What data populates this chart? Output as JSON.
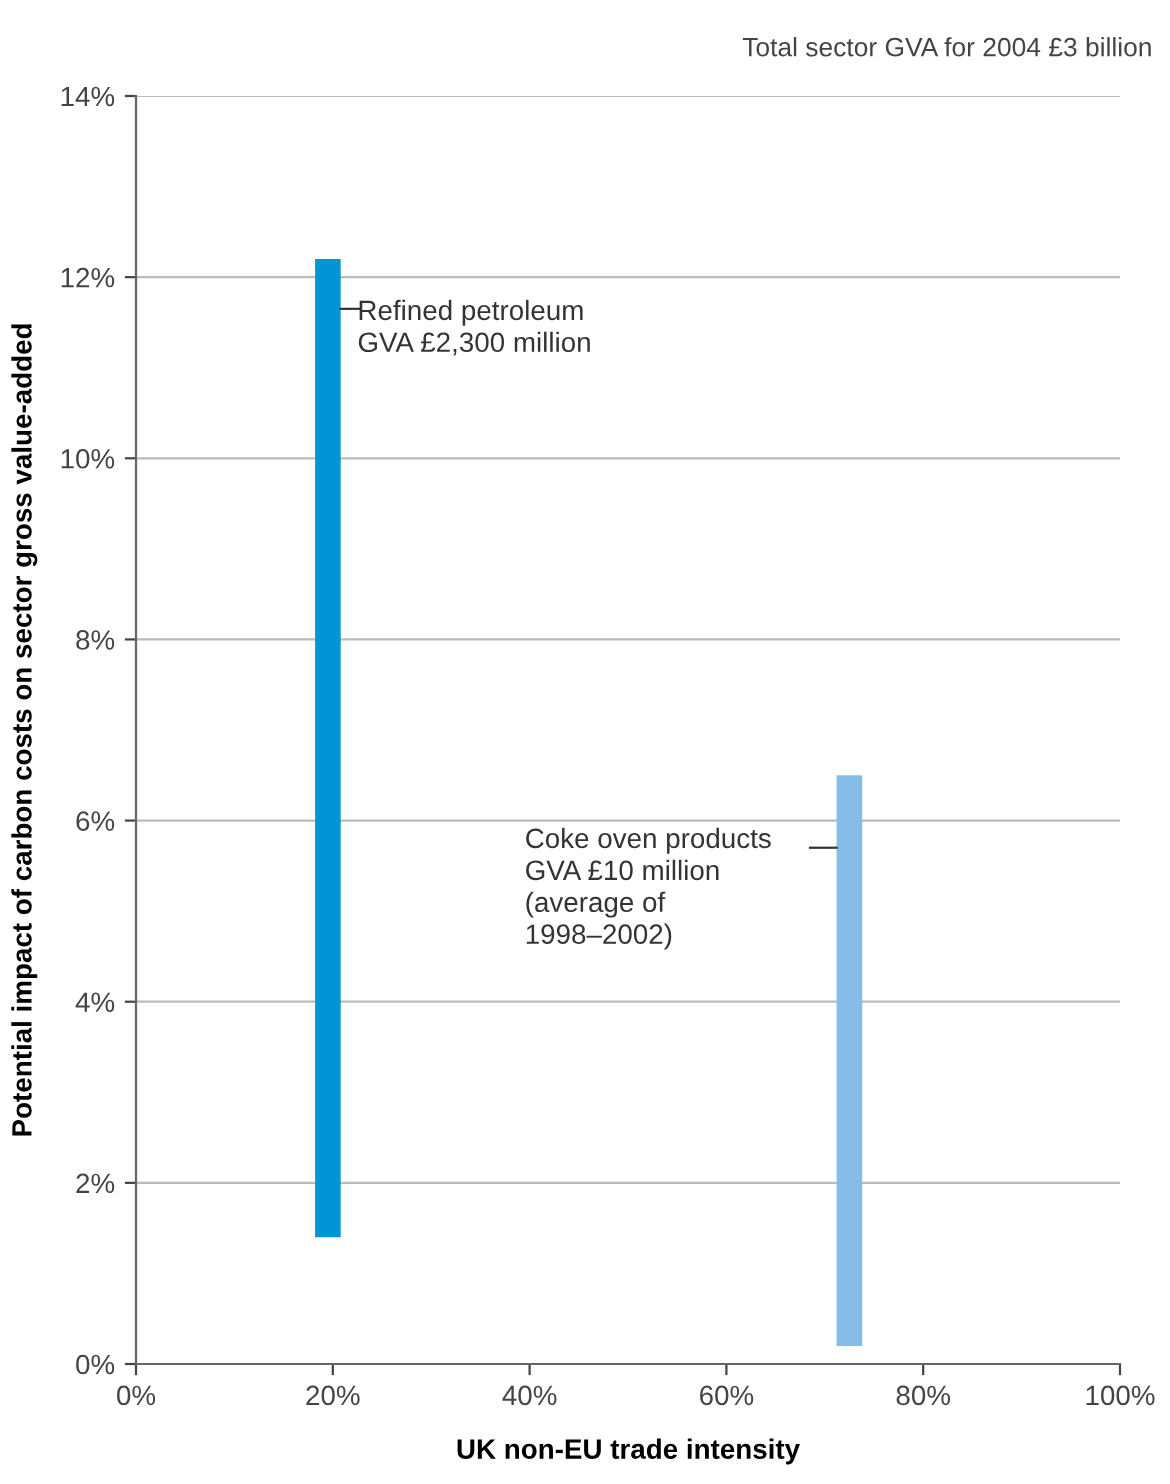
{
  "chart_data": {
    "type": "bar",
    "title": "Total sector GVA for 2004 £3 billion",
    "xlabel": "UK non-EU trade intensity",
    "ylabel": "Potential impact of carbon costs on sector gross value-added",
    "x": [
      19.5,
      72.5
    ],
    "base": [
      1.4,
      0.2
    ],
    "values": [
      10.8,
      6.3
    ],
    "colors": [
      "#0096d6",
      "#86bde8"
    ],
    "annotations": [
      "Refined petroleum\nGVA £2,300 million",
      "Coke oven products\nGVA £10 million\n(average of\n1998–2002)"
    ],
    "xlim": [
      0,
      100
    ],
    "xticks": [
      {
        "value": 0,
        "label": "0%"
      },
      {
        "value": 20,
        "label": "20%"
      },
      {
        "value": 40,
        "label": "40%"
      },
      {
        "value": 60,
        "label": "60%"
      },
      {
        "value": 80,
        "label": "80%"
      },
      {
        "value": 100,
        "label": "100%"
      }
    ],
    "ylim": [
      0,
      14
    ],
    "yticks": [
      {
        "value": 0,
        "label": "0%"
      },
      {
        "value": 2,
        "label": "2%"
      },
      {
        "value": 4,
        "label": "4%"
      },
      {
        "value": 6,
        "label": "6%"
      },
      {
        "value": 8,
        "label": "8%"
      },
      {
        "value": 10,
        "label": "10%"
      },
      {
        "value": 12,
        "label": "12%"
      },
      {
        "value": 14,
        "label": "14%"
      }
    ],
    "grid": "y"
  }
}
